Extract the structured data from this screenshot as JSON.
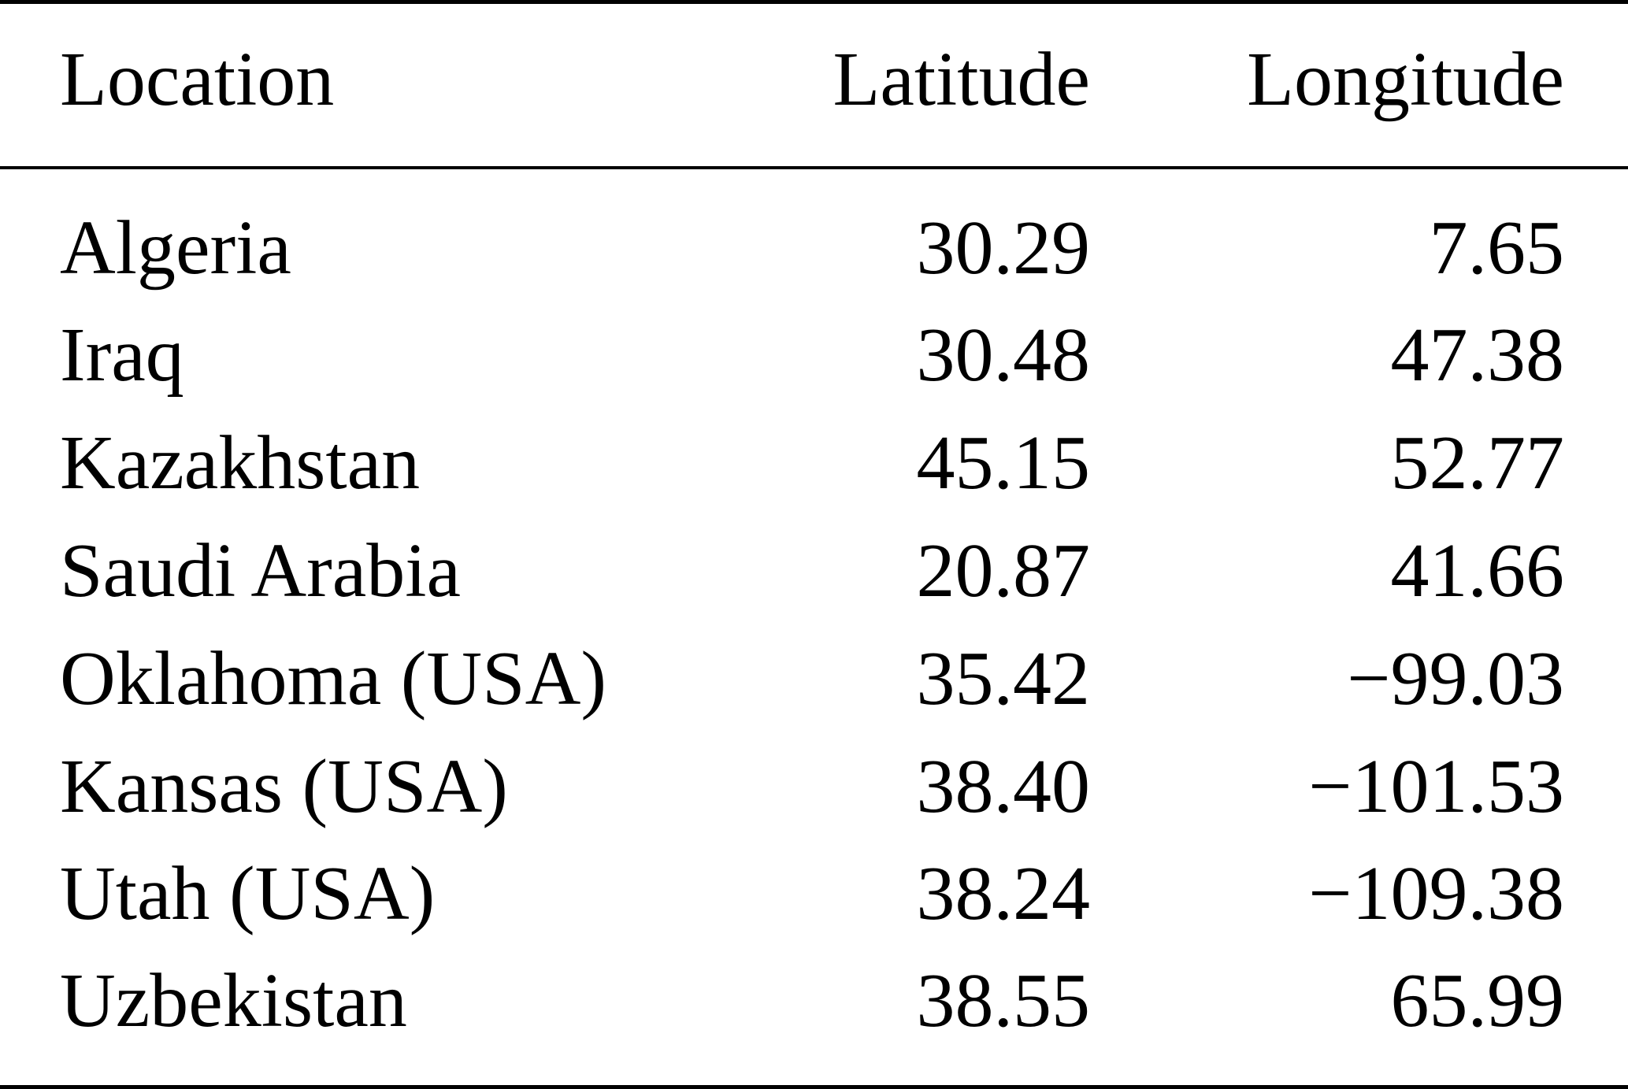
{
  "table": {
    "headers": {
      "location": "Location",
      "latitude": "Latitude",
      "longitude": "Longitude"
    },
    "rows": [
      {
        "location": "Algeria",
        "latitude": "30.29",
        "longitude": "7.65"
      },
      {
        "location": "Iraq",
        "latitude": "30.48",
        "longitude": "47.38"
      },
      {
        "location": "Kazakhstan",
        "latitude": "45.15",
        "longitude": "52.77"
      },
      {
        "location": "Saudi Arabia",
        "latitude": "20.87",
        "longitude": "41.66"
      },
      {
        "location": "Oklahoma (USA)",
        "latitude": "35.42",
        "longitude": "−99.03"
      },
      {
        "location": "Kansas (USA)",
        "latitude": "38.40",
        "longitude": "−101.53"
      },
      {
        "location": "Utah (USA)",
        "latitude": "38.24",
        "longitude": "−109.38"
      },
      {
        "location": "Uzbekistan",
        "latitude": "38.55",
        "longitude": "65.99"
      }
    ]
  }
}
